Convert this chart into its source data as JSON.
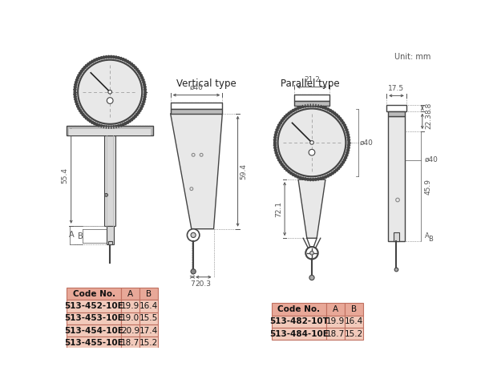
{
  "unit_text": "Unit: mm",
  "vertical_type_label": "Vertical type",
  "parallel_type_label": "Parallel type",
  "left_table": {
    "header": [
      "Code No.",
      "A",
      "B"
    ],
    "header_bg": "#E8A898",
    "rows": [
      [
        "513-452-10E",
        "19.9",
        "16.4"
      ],
      [
        "513-453-10E",
        "19.0",
        "15.5"
      ],
      [
        "513-454-10E",
        "20.9",
        "17.4"
      ],
      [
        "513-455-10E",
        "18.7",
        "15.2"
      ]
    ],
    "row_bg": "#F2CABB"
  },
  "right_table": {
    "header": [
      "Code No.",
      "A",
      "B"
    ],
    "header_bg": "#E8A898",
    "rows": [
      [
        "513-482-10T",
        "19.9",
        "16.4"
      ],
      [
        "513-484-10E",
        "18.7",
        "15.2"
      ]
    ],
    "row_bg": "#F2CABB"
  },
  "bg_color": "#FFFFFF",
  "dim_color": "#555555",
  "gauge_fill": "#E8E8E8",
  "body_fill": "#D8D8D8",
  "hat_fill": "#BBBBBB",
  "line_color": "#444444"
}
